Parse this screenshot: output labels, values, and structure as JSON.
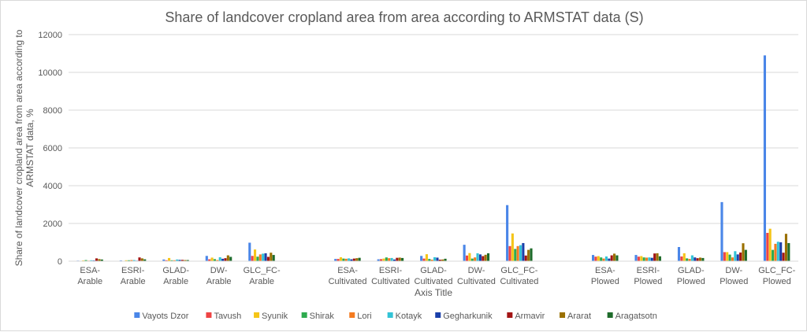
{
  "chart_data": {
    "type": "bar",
    "title": "Share of landcover cropland area from area according to ARMSTAT data (S)",
    "xlabel": "Axis Title",
    "ylabel": "Share of landcover cropland area from area according to ARMSTAT data, %",
    "ylim": [
      0,
      12000
    ],
    "yticks": [
      0,
      2000,
      4000,
      6000,
      8000,
      10000,
      12000
    ],
    "grid": true,
    "legend": "bottom",
    "groups": [
      {
        "name": "Arable",
        "categories": [
          [
            "ESA-",
            "Arable"
          ],
          [
            "ESRI-",
            "Arable"
          ],
          [
            "GLAD-",
            "Arable"
          ],
          [
            "DW-",
            "Arable"
          ],
          [
            "GLC_FC-",
            "Arable"
          ]
        ]
      },
      {
        "name": "Cultivated",
        "categories": [
          [
            "ESA-",
            "Cultivated"
          ],
          [
            "ESRI-",
            "Cultivated"
          ],
          [
            "GLAD-",
            "Cultivated"
          ],
          [
            "DW-",
            "Cultivated"
          ],
          [
            "GLC_FC-",
            "Cultivated"
          ]
        ]
      },
      {
        "name": "Plowed",
        "categories": [
          [
            "ESA-",
            "Plowed"
          ],
          [
            "ESRI-",
            "Plowed"
          ],
          [
            "GLAD-",
            "Plowed"
          ],
          [
            "DW-",
            "Plowed"
          ],
          [
            "GLC_FC-",
            "Plowed"
          ]
        ]
      }
    ],
    "series": [
      {
        "name": "Vayots Dzor",
        "color": "#4a86e8",
        "values": [
          30,
          40,
          90,
          280,
          980,
          120,
          100,
          280,
          870,
          2970,
          330,
          330,
          750,
          3130,
          10900
        ]
      },
      {
        "name": "Tavush",
        "color": "#ee4444",
        "values": [
          20,
          20,
          50,
          100,
          280,
          120,
          110,
          140,
          300,
          800,
          240,
          240,
          250,
          480,
          1500
        ]
      },
      {
        "name": "Syunik",
        "color": "#f5c518",
        "values": [
          40,
          50,
          170,
          190,
          620,
          210,
          140,
          370,
          430,
          1470,
          270,
          270,
          420,
          480,
          1720
        ]
      },
      {
        "name": "Shirak",
        "color": "#2eab4f",
        "values": [
          60,
          50,
          50,
          110,
          240,
          140,
          200,
          120,
          140,
          650,
          200,
          200,
          150,
          350,
          600
        ]
      },
      {
        "name": "Lori",
        "color": "#f47b20",
        "values": [
          30,
          60,
          50,
          60,
          360,
          130,
          160,
          80,
          200,
          800,
          140,
          190,
          120,
          200,
          920
        ]
      },
      {
        "name": "Kotayk",
        "color": "#33c3d6",
        "values": [
          50,
          60,
          90,
          210,
          400,
          150,
          170,
          210,
          420,
          850,
          250,
          200,
          310,
          530,
          1030
        ]
      },
      {
        "name": "Gegharkunik",
        "color": "#1a3faa",
        "values": [
          40,
          30,
          70,
          130,
          420,
          100,
          90,
          190,
          360,
          960,
          140,
          180,
          200,
          360,
          1000
        ]
      },
      {
        "name": "Armavir",
        "color": "#a31515",
        "values": [
          150,
          200,
          70,
          160,
          230,
          140,
          180,
          80,
          270,
          300,
          310,
          410,
          160,
          460,
          450
        ]
      },
      {
        "name": "Ararat",
        "color": "#9a7000",
        "values": [
          110,
          150,
          60,
          310,
          450,
          160,
          190,
          90,
          340,
          600,
          400,
          420,
          190,
          950,
          1450
        ]
      },
      {
        "name": "Aragatsotn",
        "color": "#1e6b2a",
        "values": [
          90,
          100,
          60,
          230,
          330,
          180,
          170,
          130,
          420,
          680,
          310,
          260,
          170,
          600,
          960
        ]
      }
    ]
  }
}
